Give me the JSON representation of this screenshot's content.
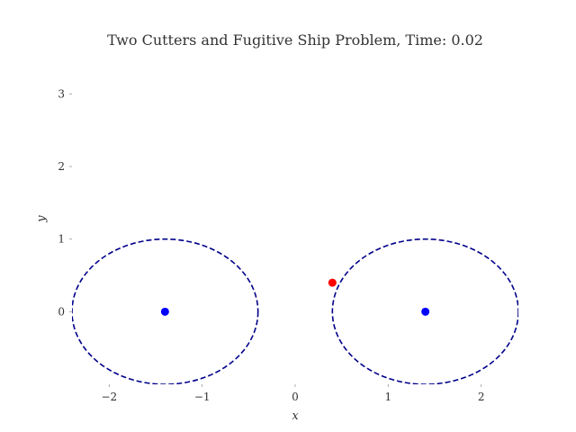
{
  "chart_data": {
    "type": "scatter",
    "title": "Two Cutters and Fugitive Ship Problem, Time: 0.02",
    "xlabel": "x",
    "ylabel": "y",
    "xlim": [
      -2.4,
      2.4
    ],
    "ylim": [
      -1.0,
      3.55
    ],
    "xticks": [
      -2,
      -1,
      0,
      1,
      2
    ],
    "xtick_labels": [
      "−2",
      "−1",
      "0",
      "1",
      "2"
    ],
    "yticks": [
      0,
      1,
      2,
      3
    ],
    "ytick_labels": [
      "0",
      "1",
      "2",
      "3"
    ],
    "grid": false,
    "legend": "none",
    "circles": [
      {
        "cx": -1.4,
        "cy": 0.0,
        "r": 1.0,
        "color": "#00008b",
        "style": "dashed"
      },
      {
        "cx": 1.4,
        "cy": 0.0,
        "r": 1.0,
        "color": "#00008b",
        "style": "dashed"
      }
    ],
    "points": [
      {
        "x": -1.4,
        "y": 0.0,
        "color": "#0000ff"
      },
      {
        "x": 1.4,
        "y": 0.0,
        "color": "#0000ff"
      },
      {
        "x": 0.4,
        "y": 0.4,
        "color": "#ff0000"
      }
    ]
  }
}
